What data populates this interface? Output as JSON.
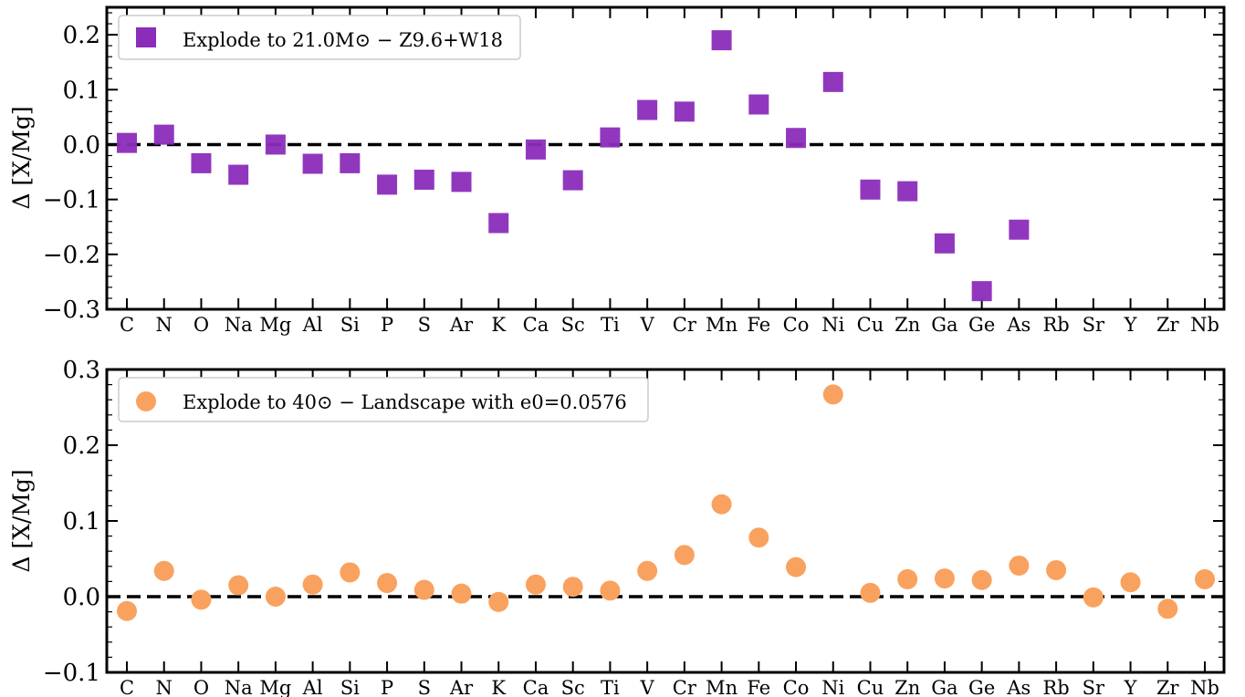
{
  "colors": {
    "panel1_marker": "#8b2cba",
    "panel2_marker": "#f9a25f",
    "axis": "#000000",
    "legend_border": "#cccccc"
  },
  "chart_data": [
    {
      "type": "scatter",
      "marker": "square",
      "ylabel": "Δ [X/Mg]",
      "ylim": [
        -0.3,
        0.25
      ],
      "yticks": [
        -0.3,
        -0.2,
        -0.1,
        0.0,
        0.1,
        0.2
      ],
      "ytick_labels": [
        "−0.3",
        "−0.2",
        "−0.1",
        "0.0",
        "0.1",
        "0.2"
      ],
      "reference_line": 0.0,
      "legend_position": "upper-left",
      "categories": [
        "C",
        "N",
        "O",
        "Na",
        "Mg",
        "Al",
        "Si",
        "P",
        "S",
        "Ar",
        "K",
        "Ca",
        "Sc",
        "Ti",
        "V",
        "Cr",
        "Mn",
        "Fe",
        "Co",
        "Ni",
        "Cu",
        "Zn",
        "Ga",
        "Ge",
        "As",
        "Rb",
        "Sr",
        "Y",
        "Zr",
        "Nb"
      ],
      "series": [
        {
          "name": "Explode to 21.0M⊙ − Z9.6+W18",
          "values": [
            0.003,
            0.018,
            -0.034,
            -0.055,
            0.0,
            -0.035,
            -0.034,
            -0.073,
            -0.064,
            -0.068,
            -0.143,
            -0.009,
            -0.065,
            0.013,
            0.063,
            0.06,
            0.19,
            0.073,
            0.012,
            0.114,
            -0.082,
            -0.085,
            -0.18,
            -0.267,
            -0.155,
            null,
            null,
            null,
            null,
            null
          ]
        }
      ]
    },
    {
      "type": "scatter",
      "marker": "circle",
      "ylabel": "Δ [X/Mg]",
      "ylim": [
        -0.1,
        0.3
      ],
      "yticks": [
        -0.1,
        0.0,
        0.1,
        0.2,
        0.3
      ],
      "ytick_labels": [
        "−0.1",
        "0.0",
        "0.1",
        "0.2",
        "0.3"
      ],
      "reference_line": 0.0,
      "legend_position": "upper-left",
      "categories": [
        "C",
        "N",
        "O",
        "Na",
        "Mg",
        "Al",
        "Si",
        "P",
        "S",
        "Ar",
        "K",
        "Ca",
        "Sc",
        "Ti",
        "V",
        "Cr",
        "Mn",
        "Fe",
        "Co",
        "Ni",
        "Cu",
        "Zn",
        "Ga",
        "Ge",
        "As",
        "Rb",
        "Sr",
        "Y",
        "Zr",
        "Nb"
      ],
      "series": [
        {
          "name": "Explode to 40⊙ − Landscape with e0=0.0576",
          "values": [
            -0.019,
            0.034,
            -0.004,
            0.015,
            0.0,
            0.016,
            0.032,
            0.018,
            0.009,
            0.004,
            -0.007,
            0.016,
            0.013,
            0.008,
            0.034,
            0.055,
            0.122,
            0.078,
            0.039,
            0.267,
            0.005,
            0.023,
            0.024,
            0.022,
            0.041,
            0.035,
            -0.001,
            0.019,
            -0.016,
            0.023
          ]
        }
      ]
    }
  ]
}
